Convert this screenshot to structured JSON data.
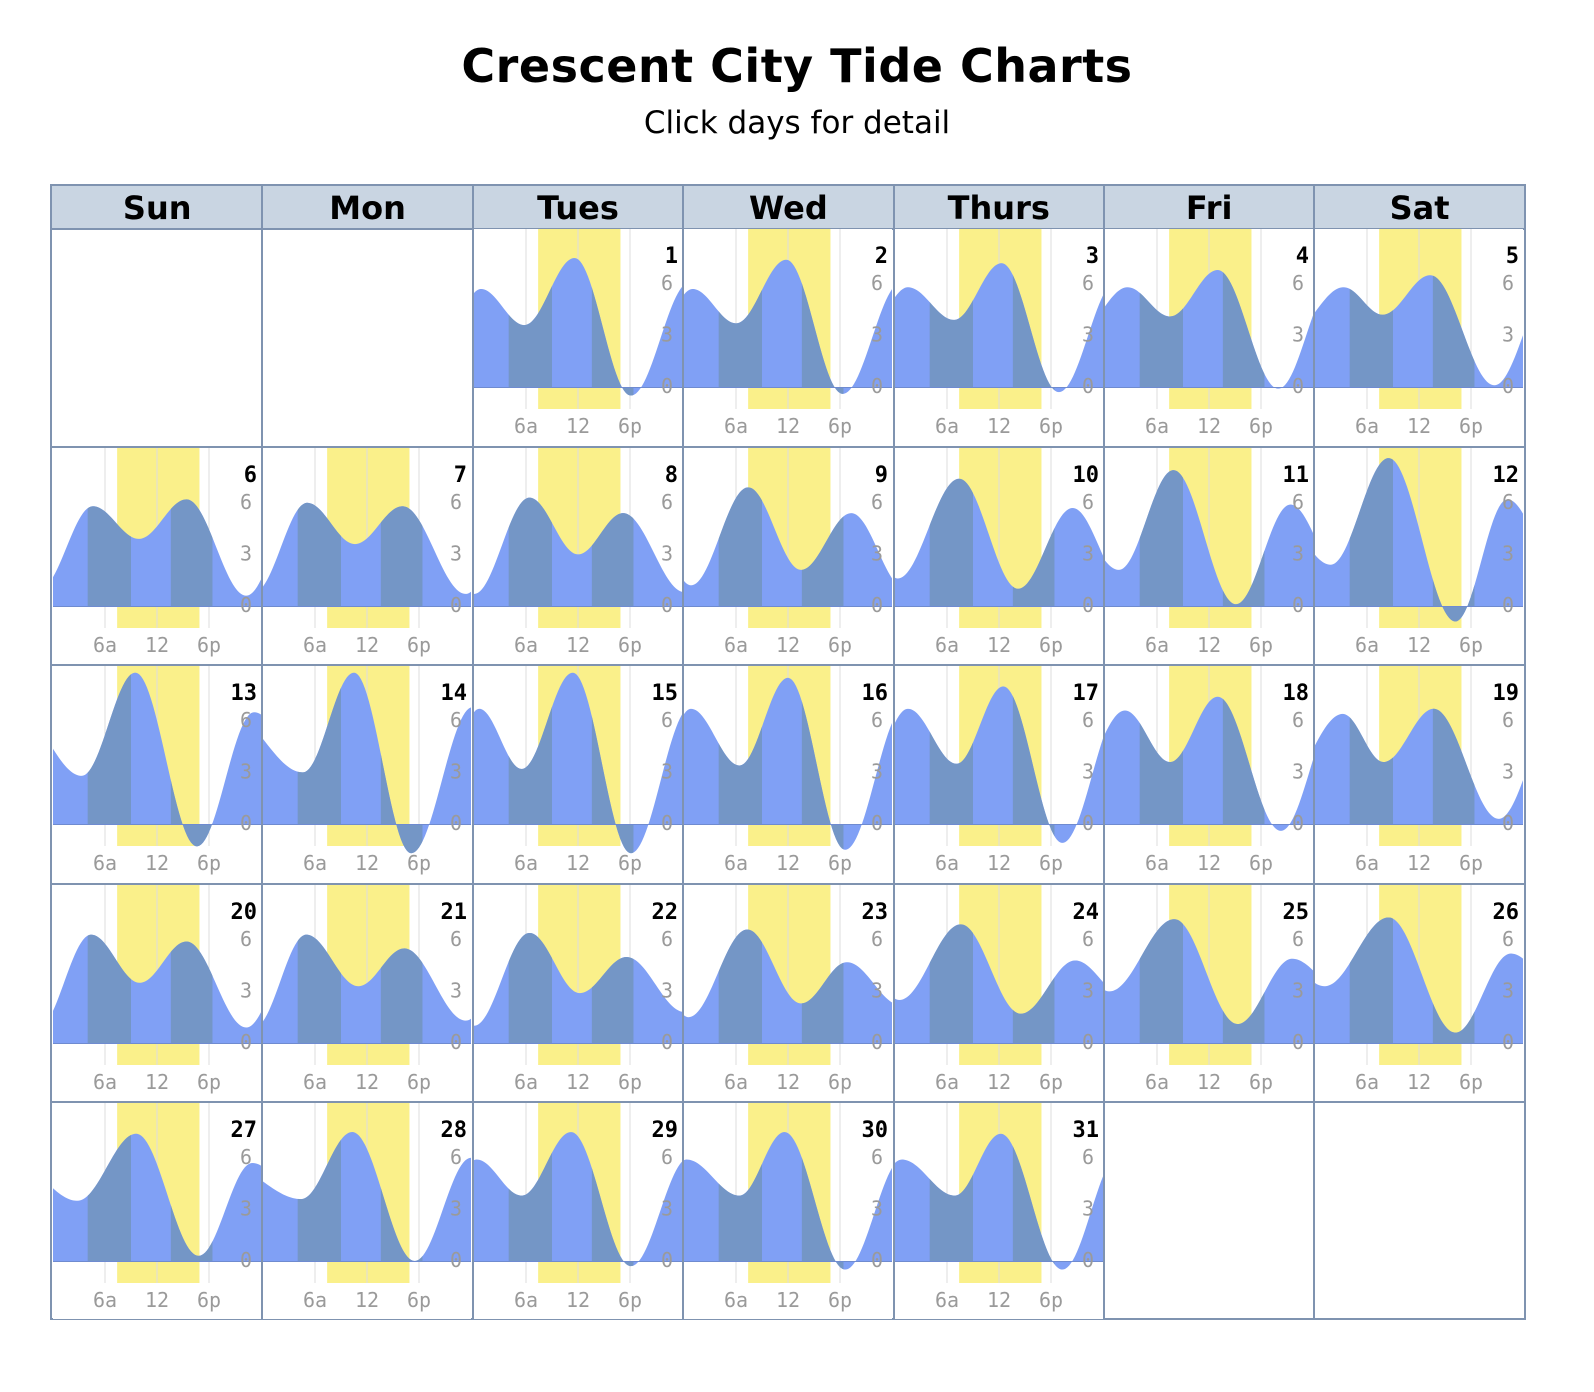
{
  "page": {
    "title": "Crescent City Tide Charts",
    "subtitle": "Click days for detail"
  },
  "calendar": {
    "weekdays": [
      "Sun",
      "Mon",
      "Tues",
      "Wed",
      "Thurs",
      "Fri",
      "Sat"
    ],
    "first_weekday_index": 2,
    "days_in_month": 31
  },
  "chart_data": {
    "type": "area",
    "x_unit": "hour of day",
    "y_unit": "tide height",
    "xlim": [
      0,
      24
    ],
    "ylim": [
      -1,
      9
    ],
    "x_ticks": [
      {
        "value": 6,
        "label": "6a"
      },
      {
        "value": 12,
        "label": "12"
      },
      {
        "value": 18,
        "label": "6p"
      }
    ],
    "y_ticks": [
      {
        "value": 0,
        "label": "0"
      },
      {
        "value": 3,
        "label": "3"
      },
      {
        "value": 6,
        "label": "6"
      }
    ],
    "colors": {
      "water": "#80a0f5",
      "water_dark": "#7496c6",
      "daylight": "#faf08a",
      "grid": "#dddddd",
      "tick_text": "#9a9a9a"
    },
    "days": [
      {
        "day": 1,
        "daylight": [
          7.4,
          16.9
        ],
        "tides": [
          {
            "t": -3,
            "h": 3.5
          },
          {
            "t": 0.8,
            "h": 5.7
          },
          {
            "t": 5.8,
            "h": 3.6
          },
          {
            "t": 11.6,
            "h": 7.5
          },
          {
            "t": 18.1,
            "h": -0.5
          },
          {
            "t": 24.9,
            "h": 6.1
          }
        ]
      },
      {
        "day": 2,
        "daylight": [
          7.4,
          16.9
        ],
        "tides": [
          {
            "t": -3,
            "h": 3.5
          },
          {
            "t": 1.0,
            "h": 5.7
          },
          {
            "t": 6.0,
            "h": 3.7
          },
          {
            "t": 11.8,
            "h": 7.4
          },
          {
            "t": 18.3,
            "h": -0.4
          },
          {
            "t": 25.1,
            "h": 6.1
          }
        ]
      },
      {
        "day": 3,
        "daylight": [
          7.4,
          16.9
        ],
        "tides": [
          {
            "t": -3,
            "h": 3.5
          },
          {
            "t": 1.5,
            "h": 5.8
          },
          {
            "t": 6.8,
            "h": 3.9
          },
          {
            "t": 12.3,
            "h": 7.2
          },
          {
            "t": 18.9,
            "h": -0.3
          },
          {
            "t": 25.6,
            "h": 6.2
          }
        ]
      },
      {
        "day": 4,
        "daylight": [
          7.4,
          16.9
        ],
        "tides": [
          {
            "t": -3,
            "h": 3.3
          },
          {
            "t": 2.6,
            "h": 5.8
          },
          {
            "t": 7.5,
            "h": 4.1
          },
          {
            "t": 13.0,
            "h": 6.8
          },
          {
            "t": 20.0,
            "h": -0.1
          },
          {
            "t": 26.5,
            "h": 6.2
          }
        ]
      },
      {
        "day": 5,
        "daylight": [
          7.4,
          16.9
        ],
        "tides": [
          {
            "t": -3,
            "h": 3.1
          },
          {
            "t": 3.3,
            "h": 5.8
          },
          {
            "t": 7.8,
            "h": 4.2
          },
          {
            "t": 13.3,
            "h": 6.5
          },
          {
            "t": 20.7,
            "h": 0.1
          },
          {
            "t": 27.5,
            "h": 6.2
          }
        ]
      },
      {
        "day": 6,
        "daylight": [
          7.4,
          16.9
        ],
        "tides": [
          {
            "t": -3,
            "h": 5.5
          },
          {
            "t": -1.5,
            "h": 1.0
          },
          {
            "t": 4.6,
            "h": 5.8
          },
          {
            "t": 9.9,
            "h": 3.9
          },
          {
            "t": 15.4,
            "h": 6.2
          },
          {
            "t": 22.3,
            "h": 0.6
          },
          {
            "t": 28.5,
            "h": 6.0
          }
        ]
      },
      {
        "day": 7,
        "daylight": [
          7.4,
          16.9
        ],
        "tides": [
          {
            "t": -3,
            "h": 5.5
          },
          {
            "t": -1.0,
            "h": 0.8
          },
          {
            "t": 5.1,
            "h": 6.0
          },
          {
            "t": 10.6,
            "h": 3.6
          },
          {
            "t": 16.1,
            "h": 5.8
          },
          {
            "t": 23.4,
            "h": 0.7
          },
          {
            "t": 29.5,
            "h": 6.0
          }
        ]
      },
      {
        "day": 8,
        "daylight": [
          7.4,
          16.9
        ],
        "tides": [
          {
            "t": -3,
            "h": 5.5
          },
          {
            "t": 0.0,
            "h": 0.7
          },
          {
            "t": 6.4,
            "h": 6.3
          },
          {
            "t": 12.0,
            "h": 3.0
          },
          {
            "t": 17.2,
            "h": 5.4
          },
          {
            "t": 24.3,
            "h": 0.8
          },
          {
            "t": 30.3,
            "h": 6.0
          }
        ]
      },
      {
        "day": 9,
        "daylight": [
          7.4,
          16.9
        ],
        "tides": [
          {
            "t": -4,
            "h": 5.0
          },
          {
            "t": 0.8,
            "h": 1.2
          },
          {
            "t": 7.4,
            "h": 6.9
          },
          {
            "t": 13.5,
            "h": 2.1
          },
          {
            "t": 19.3,
            "h": 5.4
          },
          {
            "t": 25.5,
            "h": 1.0
          }
        ]
      },
      {
        "day": 10,
        "daylight": [
          7.4,
          16.9
        ],
        "tides": [
          {
            "t": -4,
            "h": 5.0
          },
          {
            "t": 0.3,
            "h": 1.6
          },
          {
            "t": 7.4,
            "h": 7.4
          },
          {
            "t": 14.2,
            "h": 1.0
          },
          {
            "t": 20.5,
            "h": 5.7
          },
          {
            "t": 26.5,
            "h": 1.3
          }
        ]
      },
      {
        "day": 11,
        "daylight": [
          7.4,
          16.9
        ],
        "tides": [
          {
            "t": -4,
            "h": 5.0
          },
          {
            "t": 1.6,
            "h": 2.1
          },
          {
            "t": 7.9,
            "h": 7.9
          },
          {
            "t": 15.1,
            "h": 0.1
          },
          {
            "t": 21.4,
            "h": 5.9
          },
          {
            "t": 27.5,
            "h": 1.6
          }
        ]
      },
      {
        "day": 12,
        "daylight": [
          7.4,
          16.9
        ],
        "tides": [
          {
            "t": -4,
            "h": 5.0
          },
          {
            "t": 1.8,
            "h": 2.4
          },
          {
            "t": 8.5,
            "h": 8.6
          },
          {
            "t": 16.2,
            "h": -0.9
          },
          {
            "t": 22.2,
            "h": 6.2
          },
          {
            "t": 28.5,
            "h": 1.8
          }
        ]
      },
      {
        "day": 13,
        "daylight": [
          7.4,
          16.9
        ],
        "tides": [
          {
            "t": -4,
            "h": 6.5
          },
          {
            "t": 3.3,
            "h": 2.8
          },
          {
            "t": 9.5,
            "h": 8.8
          },
          {
            "t": 16.6,
            "h": -1.3
          },
          {
            "t": 23.2,
            "h": 6.5
          },
          {
            "t": 30.0,
            "h": 2.5
          }
        ]
      },
      {
        "day": 14,
        "daylight": [
          7.4,
          16.9
        ],
        "tides": [
          {
            "t": -4,
            "h": 6.5
          },
          {
            "t": 4.6,
            "h": 3.0
          },
          {
            "t": 10.5,
            "h": 8.8
          },
          {
            "t": 17.1,
            "h": -1.7
          },
          {
            "t": 24.2,
            "h": 6.8
          }
        ]
      },
      {
        "day": 15,
        "daylight": [
          7.4,
          16.9
        ],
        "tides": [
          {
            "t": -4,
            "h": 2.0
          },
          {
            "t": 0.6,
            "h": 6.7
          },
          {
            "t": 5.5,
            "h": 3.2
          },
          {
            "t": 11.4,
            "h": 8.8
          },
          {
            "t": 18.1,
            "h": -1.7
          },
          {
            "t": 25.0,
            "h": 6.8
          }
        ]
      },
      {
        "day": 16,
        "daylight": [
          7.4,
          16.9
        ],
        "tides": [
          {
            "t": -4,
            "h": 2.0
          },
          {
            "t": 0.8,
            "h": 6.7
          },
          {
            "t": 6.4,
            "h": 3.4
          },
          {
            "t": 12.0,
            "h": 8.5
          },
          {
            "t": 18.6,
            "h": -1.5
          },
          {
            "t": 25.5,
            "h": 6.8
          }
        ]
      },
      {
        "day": 17,
        "daylight": [
          7.4,
          16.9
        ],
        "tides": [
          {
            "t": -4,
            "h": 2.0
          },
          {
            "t": 1.5,
            "h": 6.7
          },
          {
            "t": 7.1,
            "h": 3.5
          },
          {
            "t": 12.5,
            "h": 8.0
          },
          {
            "t": 19.3,
            "h": -1.1
          },
          {
            "t": 26.2,
            "h": 6.8
          }
        ]
      },
      {
        "day": 18,
        "daylight": [
          7.4,
          16.9
        ],
        "tides": [
          {
            "t": -4,
            "h": 2.0
          },
          {
            "t": 2.3,
            "h": 6.6
          },
          {
            "t": 7.5,
            "h": 3.6
          },
          {
            "t": 13.0,
            "h": 7.4
          },
          {
            "t": 20.3,
            "h": -0.4
          },
          {
            "t": 27.0,
            "h": 6.7
          }
        ]
      },
      {
        "day": 19,
        "daylight": [
          7.4,
          16.9
        ],
        "tides": [
          {
            "t": -4,
            "h": 2.0
          },
          {
            "t": 3.2,
            "h": 6.4
          },
          {
            "t": 7.9,
            "h": 3.6
          },
          {
            "t": 13.7,
            "h": 6.7
          },
          {
            "t": 21.2,
            "h": 0.3
          },
          {
            "t": 28.0,
            "h": 6.5
          }
        ]
      },
      {
        "day": 20,
        "daylight": [
          7.4,
          16.9
        ],
        "tides": [
          {
            "t": -4,
            "h": 5.0
          },
          {
            "t": -1.8,
            "h": 0.8
          },
          {
            "t": 4.4,
            "h": 6.3
          },
          {
            "t": 10.0,
            "h": 3.5
          },
          {
            "t": 15.4,
            "h": 5.9
          },
          {
            "t": 22.3,
            "h": 0.9
          },
          {
            "t": 28.5,
            "h": 6.0
          }
        ]
      },
      {
        "day": 21,
        "daylight": [
          7.4,
          16.9
        ],
        "tides": [
          {
            "t": -4,
            "h": 5.0
          },
          {
            "t": -1.0,
            "h": 0.9
          },
          {
            "t": 5.0,
            "h": 6.3
          },
          {
            "t": 11.0,
            "h": 3.3
          },
          {
            "t": 16.3,
            "h": 5.5
          },
          {
            "t": 23.4,
            "h": 1.3
          },
          {
            "t": 29.5,
            "h": 5.8
          }
        ]
      },
      {
        "day": 22,
        "daylight": [
          7.4,
          16.9
        ],
        "tides": [
          {
            "t": -4,
            "h": 5.0
          },
          {
            "t": 0.0,
            "h": 1.0
          },
          {
            "t": 6.4,
            "h": 6.4
          },
          {
            "t": 12.2,
            "h": 2.9
          },
          {
            "t": 17.6,
            "h": 5.0
          },
          {
            "t": 24.3,
            "h": 1.8
          },
          {
            "t": 30.3,
            "h": 5.5
          }
        ]
      },
      {
        "day": 23,
        "daylight": [
          7.4,
          16.9
        ],
        "tides": [
          {
            "t": -4,
            "h": 5.0
          },
          {
            "t": 0.5,
            "h": 1.5
          },
          {
            "t": 7.3,
            "h": 6.6
          },
          {
            "t": 13.5,
            "h": 2.3
          },
          {
            "t": 18.8,
            "h": 4.7
          },
          {
            "t": 25.0,
            "h": 2.2
          }
        ]
      },
      {
        "day": 24,
        "daylight": [
          7.4,
          16.9
        ],
        "tides": [
          {
            "t": -4,
            "h": 5.0
          },
          {
            "t": 0.5,
            "h": 2.5
          },
          {
            "t": 7.6,
            "h": 6.9
          },
          {
            "t": 14.5,
            "h": 1.7
          },
          {
            "t": 20.8,
            "h": 4.8
          },
          {
            "t": 26.5,
            "h": 2.7
          }
        ]
      },
      {
        "day": 25,
        "daylight": [
          7.4,
          16.9
        ],
        "tides": [
          {
            "t": -4,
            "h": 5.0
          },
          {
            "t": 0.5,
            "h": 3.0
          },
          {
            "t": 8.0,
            "h": 7.2
          },
          {
            "t": 15.3,
            "h": 1.1
          },
          {
            "t": 21.6,
            "h": 4.9
          },
          {
            "t": 27.5,
            "h": 3.0
          }
        ]
      },
      {
        "day": 26,
        "daylight": [
          7.4,
          16.9
        ],
        "tides": [
          {
            "t": -4,
            "h": 5.0
          },
          {
            "t": 1.1,
            "h": 3.3
          },
          {
            "t": 8.5,
            "h": 7.3
          },
          {
            "t": 16.2,
            "h": 0.6
          },
          {
            "t": 22.6,
            "h": 5.2
          },
          {
            "t": 28.5,
            "h": 3.0
          }
        ]
      },
      {
        "day": 27,
        "daylight": [
          7.4,
          16.9
        ],
        "tides": [
          {
            "t": -4,
            "h": 5.5
          },
          {
            "t": 2.8,
            "h": 3.5
          },
          {
            "t": 9.6,
            "h": 7.4
          },
          {
            "t": 16.8,
            "h": 0.3
          },
          {
            "t": 23.0,
            "h": 5.7
          },
          {
            "t": 29.5,
            "h": 3.0
          }
        ]
      },
      {
        "day": 28,
        "daylight": [
          7.4,
          16.9
        ],
        "tides": [
          {
            "t": -4,
            "h": 5.5
          },
          {
            "t": 4.4,
            "h": 3.6
          },
          {
            "t": 10.3,
            "h": 7.5
          },
          {
            "t": 17.5,
            "h": 0.0
          },
          {
            "t": 24.0,
            "h": 6.0
          }
        ]
      },
      {
        "day": 29,
        "daylight": [
          7.4,
          16.9
        ],
        "tides": [
          {
            "t": -4,
            "h": 3.0
          },
          {
            "t": 0.3,
            "h": 5.9
          },
          {
            "t": 5.5,
            "h": 3.8
          },
          {
            "t": 11.2,
            "h": 7.5
          },
          {
            "t": 18.1,
            "h": -0.3
          },
          {
            "t": 24.8,
            "h": 6.0
          }
        ]
      },
      {
        "day": 30,
        "daylight": [
          7.4,
          16.9
        ],
        "tides": [
          {
            "t": -4,
            "h": 3.0
          },
          {
            "t": 0.3,
            "h": 5.9
          },
          {
            "t": 6.4,
            "h": 3.8
          },
          {
            "t": 11.6,
            "h": 7.5
          },
          {
            "t": 18.6,
            "h": -0.5
          },
          {
            "t": 25.3,
            "h": 6.0
          }
        ]
      },
      {
        "day": 31,
        "daylight": [
          7.4,
          16.9
        ],
        "tides": [
          {
            "t": -4,
            "h": 3.0
          },
          {
            "t": 0.8,
            "h": 5.9
          },
          {
            "t": 6.9,
            "h": 3.8
          },
          {
            "t": 12.2,
            "h": 7.4
          },
          {
            "t": 19.3,
            "h": -0.5
          },
          {
            "t": 25.9,
            "h": 6.2
          }
        ]
      }
    ]
  }
}
